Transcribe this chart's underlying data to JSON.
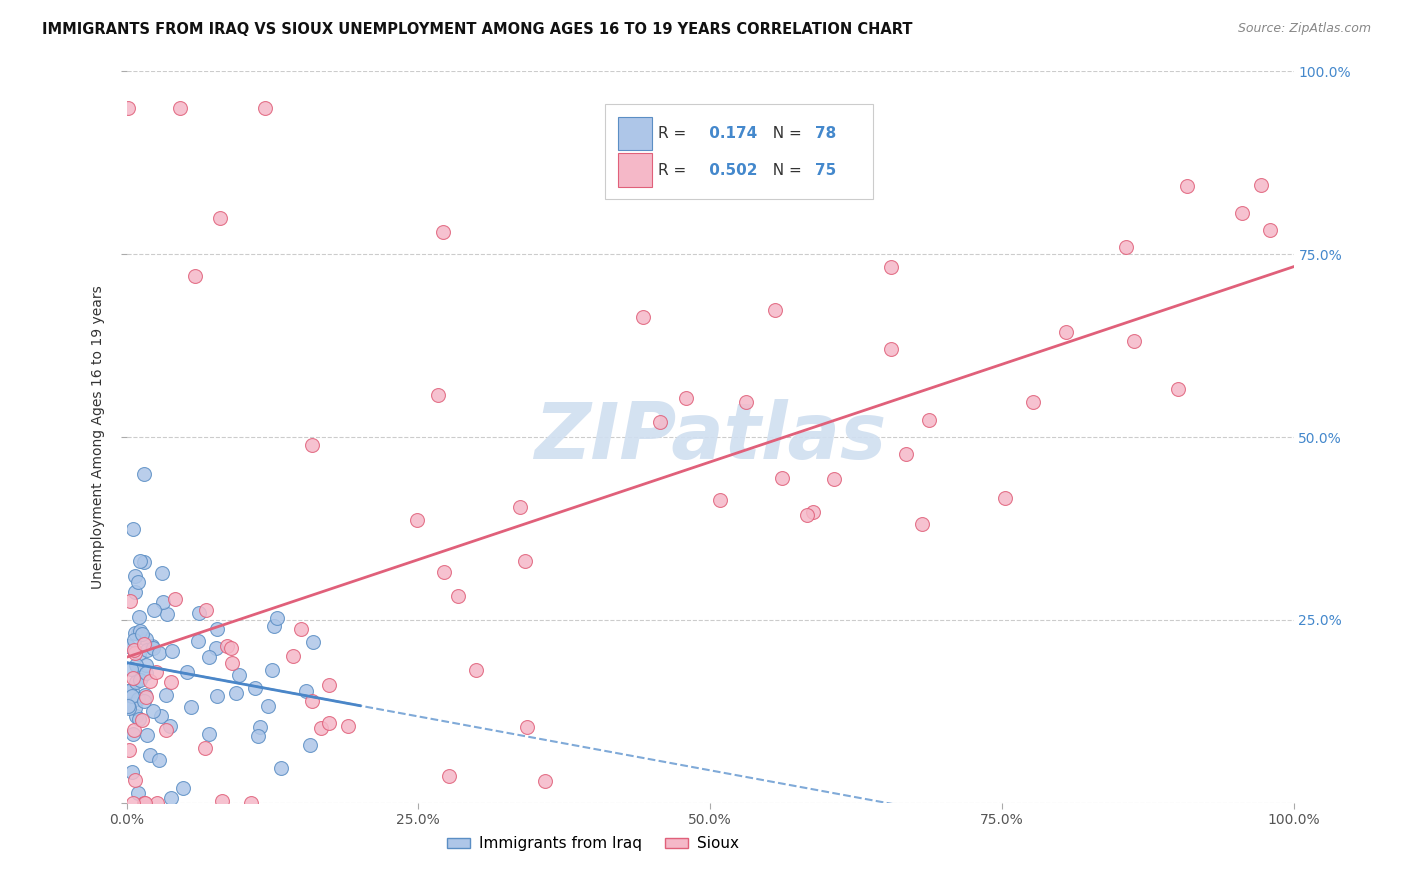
{
  "title": "IMMIGRANTS FROM IRAQ VS SIOUX UNEMPLOYMENT AMONG AGES 16 TO 19 YEARS CORRELATION CHART",
  "source": "Source: ZipAtlas.com",
  "ylabel": "Unemployment Among Ages 16 to 19 years",
  "xlim": [
    0.0,
    1.0
  ],
  "ylim": [
    0.0,
    1.0
  ],
  "iraq_color": "#aec6e8",
  "iraq_edge_color": "#5b8ec4",
  "sioux_color": "#f5b8c8",
  "sioux_edge_color": "#e0607a",
  "iraq_R": 0.174,
  "iraq_N": 78,
  "sioux_R": 0.502,
  "sioux_N": 75,
  "iraq_line_color": "#4a86c8",
  "sioux_line_color": "#e0607a",
  "right_tick_color": "#4488cc",
  "background_color": "#ffffff",
  "grid_color": "#cccccc",
  "watermark_color": "#d0dff0",
  "title_color": "#111111",
  "source_color": "#888888"
}
